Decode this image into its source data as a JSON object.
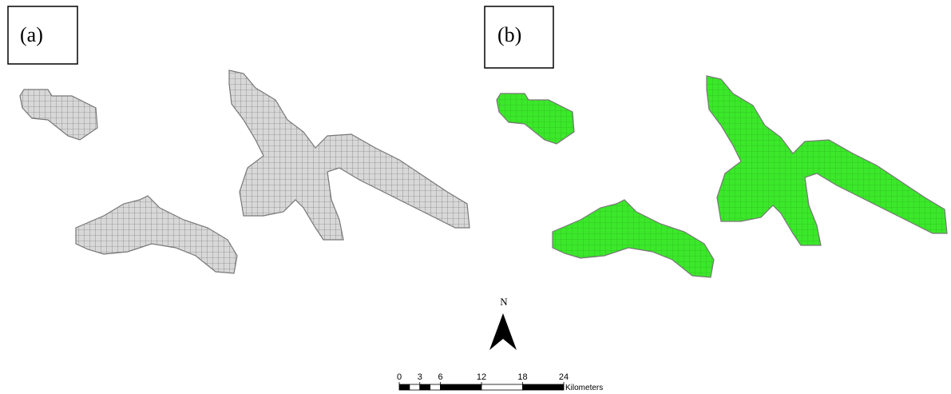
{
  "panels": [
    {
      "label": "(a)"
    },
    {
      "label": "(b)"
    }
  ],
  "north_arrow": {
    "label": "N"
  },
  "scale_bar": {
    "ticks": [
      0,
      3,
      6,
      12,
      18,
      24
    ],
    "unit": "Kilometers"
  }
}
